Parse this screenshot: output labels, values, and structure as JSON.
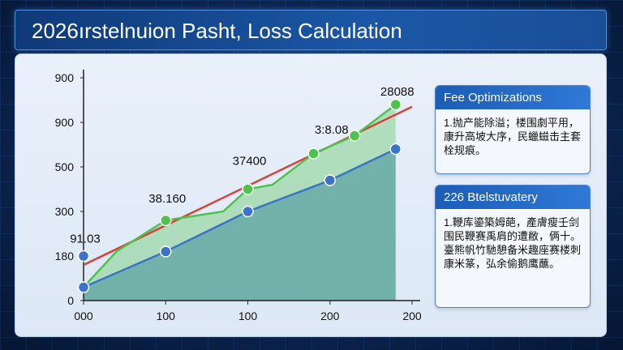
{
  "title": "2026ırstelnuion Pasht, Loss Calculation",
  "cards": [
    {
      "heading": "Fee Optimizations",
      "body": "1.抛产能除溢；楼围劇平用，康升高坡大序，民蠟螆击主套栓规痕。"
    },
    {
      "heading": "226 Btelstuvatery",
      "body": "1.鞭库鎏築姆葩，產膚瘦壬剑围民鞭赛禹肩的遭敝，俩十。臺熊帆竹馳憩备米趣座赛楼刺康米篆，弘余偷鹅鹰蘸。"
    }
  ],
  "chart_data": {
    "type": "line",
    "title": "",
    "xlabel": "",
    "ylabel": "",
    "y_tick_labels": [
      "0",
      "180",
      "300",
      "500",
      "900",
      "900"
    ],
    "x_tick_labels": [
      "000",
      "100",
      "100",
      "200",
      "200"
    ],
    "ylim": [
      0,
      5
    ],
    "xlim": [
      0,
      4
    ],
    "grid": false,
    "data_labels": [
      "91.03",
      "38.160",
      "37400",
      "3:8.08",
      "28088"
    ],
    "series": [
      {
        "color": "#d9413a",
        "style": "line",
        "x": [
          0,
          4
        ],
        "y": [
          0.8,
          4.35
        ]
      },
      {
        "color": "#4ec24e",
        "style": "line-area",
        "x": [
          0,
          0.4,
          1,
          1.7,
          2,
          2.3,
          2.8,
          3.3,
          3.8
        ],
        "y": [
          0.3,
          1.1,
          1.8,
          2.0,
          2.5,
          2.6,
          3.3,
          3.7,
          4.4
        ],
        "points": [
          [
            1,
            1.8
          ],
          [
            2,
            2.5
          ],
          [
            2.8,
            3.3
          ],
          [
            3.3,
            3.7
          ],
          [
            3.8,
            4.4
          ]
        ]
      },
      {
        "color": "#3a73c9",
        "style": "line-area",
        "x": [
          0,
          1,
          2,
          3,
          3.8
        ],
        "y": [
          0.3,
          1.1,
          2.0,
          2.7,
          3.4
        ],
        "points": [
          [
            0,
            0.3
          ],
          [
            0,
            1.0
          ],
          [
            1,
            1.1
          ],
          [
            2,
            2.0
          ],
          [
            3,
            2.7
          ],
          [
            3.8,
            3.4
          ]
        ]
      }
    ],
    "label_positions": [
      [
        0,
        1.3
      ],
      [
        1,
        2.2
      ],
      [
        2,
        3.05
      ],
      [
        3,
        3.75
      ],
      [
        3.8,
        4.6
      ]
    ]
  }
}
